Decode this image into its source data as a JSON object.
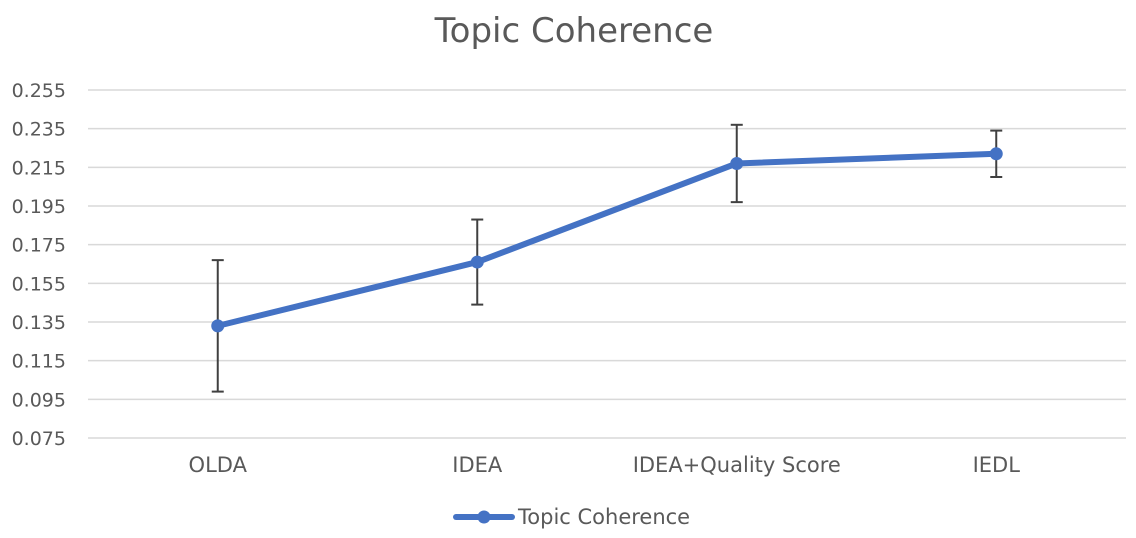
{
  "chart_data": {
    "type": "line",
    "title": "Topic Coherence",
    "xlabel": "",
    "ylabel": "",
    "categories": [
      "OLDA",
      "IDEA",
      "IDEA+Quality Score",
      "IEDL"
    ],
    "series": [
      {
        "name": "Topic Coherence",
        "values": [
          0.133,
          0.166,
          0.217,
          0.222
        ],
        "error_low": [
          0.099,
          0.144,
          0.197,
          0.21
        ],
        "error_high": [
          0.167,
          0.188,
          0.237,
          0.234
        ]
      }
    ],
    "ylim": [
      0.075,
      0.255
    ],
    "yticks": [
      "0.075",
      "0.095",
      "0.115",
      "0.135",
      "0.155",
      "0.175",
      "0.195",
      "0.215",
      "0.235",
      "0.255"
    ],
    "ytick_values": [
      0.075,
      0.095,
      0.115,
      0.135,
      0.155,
      0.175,
      0.195,
      0.215,
      0.235,
      0.255
    ],
    "grid": true,
    "legend_position": "bottom-center",
    "colors": {
      "series": "#4472C4",
      "error_bar": "#404040",
      "grid": "#D9D9D9",
      "text": "#595959"
    }
  }
}
